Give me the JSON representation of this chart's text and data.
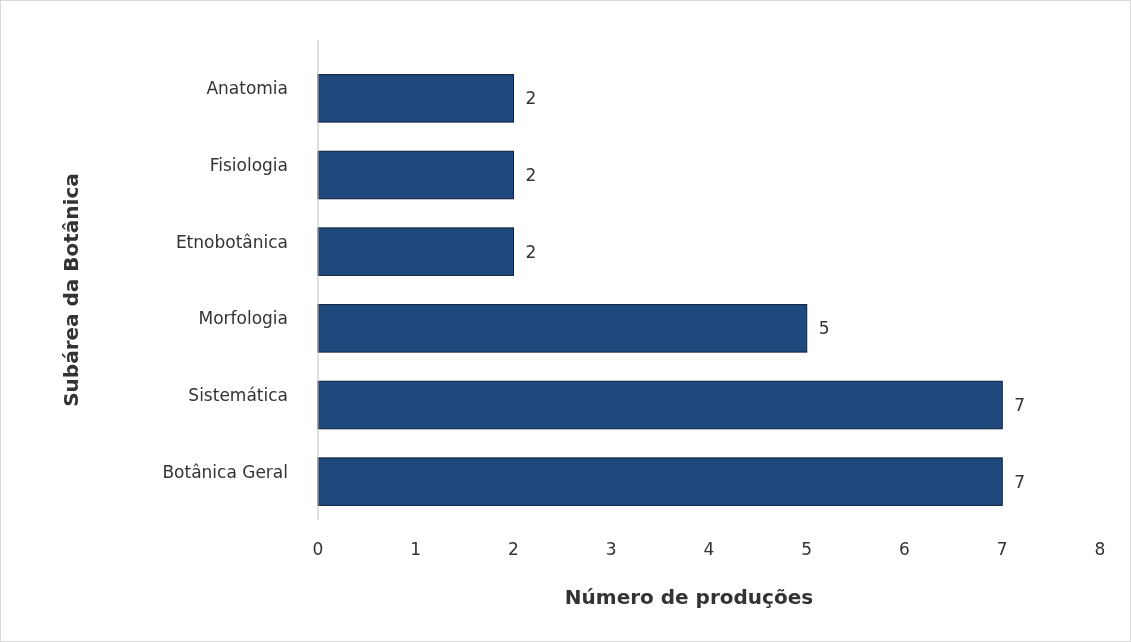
{
  "chart_data": {
    "type": "bar",
    "orientation": "horizontal",
    "xlabel": "Número de produções",
    "ylabel": "Subárea da Botânica",
    "categories": [
      "Anatomia",
      "Fisiologia",
      "Etnobotânica",
      "Morfologia",
      "Sistemática",
      "Botânica Geral"
    ],
    "values": [
      2,
      2,
      2,
      5,
      7,
      7
    ],
    "color": "#1f497d",
    "xlim": [
      0,
      8
    ],
    "xticks": [
      0,
      1,
      2,
      3,
      4,
      5,
      6,
      7,
      8
    ],
    "data_labels": true,
    "grid": false
  }
}
